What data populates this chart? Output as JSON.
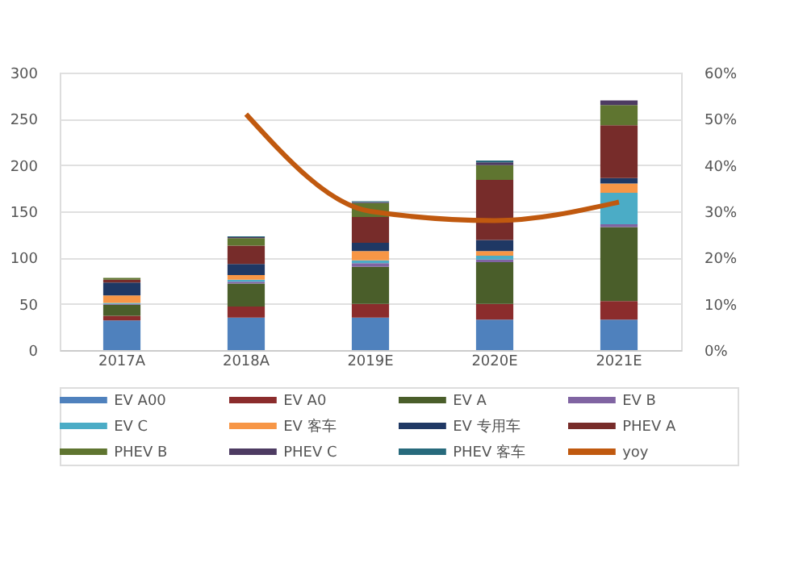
{
  "chart_data": {
    "type": "bar",
    "stacked": true,
    "categories": [
      "2017A",
      "2018A",
      "2019E",
      "2020E",
      "2021E"
    ],
    "ylim": [
      0,
      300
    ],
    "yticks": [
      0,
      50,
      100,
      150,
      200,
      250,
      300
    ],
    "y2lim": [
      0,
      60
    ],
    "y2ticks": [
      {
        "value": 0,
        "label": "0%"
      },
      {
        "value": 10,
        "label": "10%"
      },
      {
        "value": 20,
        "label": "20%"
      },
      {
        "value": 30,
        "label": "30%"
      },
      {
        "value": 40,
        "label": "40%"
      },
      {
        "value": 50,
        "label": "50%"
      },
      {
        "value": 60,
        "label": "60%"
      }
    ],
    "grid": "y",
    "legend": "bottom",
    "series": [
      {
        "name": "EV A00",
        "color": "#4f81bd",
        "values": [
          32,
          35,
          35,
          33,
          33
        ]
      },
      {
        "name": "EV A0",
        "color": "#8b2c2c",
        "values": [
          5,
          12,
          15,
          17,
          20
        ]
      },
      {
        "name": "EV A",
        "color": "#4a5e2a",
        "values": [
          12,
          25,
          40,
          45,
          80
        ]
      },
      {
        "name": "EV B",
        "color": "#8064a2",
        "values": [
          1,
          2,
          4,
          3,
          3
        ]
      },
      {
        "name": "EV C",
        "color": "#4bacc6",
        "values": [
          1,
          2,
          3,
          4,
          34
        ]
      },
      {
        "name": "EV 客车",
        "color": "#f79646",
        "values": [
          8,
          5,
          10,
          5,
          10
        ]
      },
      {
        "name": "EV 专用车",
        "color": "#1f3864",
        "values": [
          14,
          12,
          9,
          12,
          6
        ]
      },
      {
        "name": "PHEV A",
        "color": "#772c2a",
        "values": [
          3,
          20,
          28,
          65,
          57
        ]
      },
      {
        "name": "PHEV B",
        "color": "#5f7530",
        "values": [
          2,
          8,
          15,
          16,
          22
        ]
      },
      {
        "name": "PHEV C",
        "color": "#4d3b62",
        "values": [
          0,
          1,
          1,
          3,
          5
        ]
      },
      {
        "name": "PHEV 客车",
        "color": "#276a7c",
        "values": [
          0,
          1,
          1,
          2,
          0
        ]
      },
      {
        "name": "yoy",
        "type": "line",
        "axis": "y2",
        "color": "#c0590f",
        "values": [
          null,
          51,
          30,
          28,
          32
        ]
      }
    ]
  }
}
